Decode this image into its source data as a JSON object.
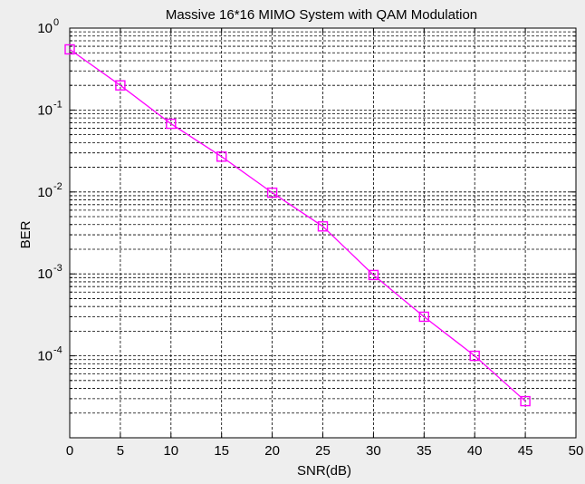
{
  "chart_data": {
    "type": "line",
    "title": "Massive 16*16 MIMO System with QAM Modulation",
    "xlabel": "SNR(dB)",
    "ylabel": "BER",
    "xlim": [
      0,
      50
    ],
    "ylim": [
      1e-05,
      1
    ],
    "yscale": "log",
    "grid": true,
    "x_ticks": [
      0,
      5,
      10,
      15,
      20,
      25,
      30,
      35,
      40,
      45,
      50
    ],
    "x_tick_labels": [
      "0",
      "5",
      "10",
      "15",
      "20",
      "25",
      "30",
      "35",
      "40",
      "45",
      "50"
    ],
    "y_ticks": [
      {
        "value": 1,
        "base": "10",
        "exp": "0"
      },
      {
        "value": 0.1,
        "base": "10",
        "exp": "-1"
      },
      {
        "value": 0.01,
        "base": "10",
        "exp": "-2"
      },
      {
        "value": 0.001,
        "base": "10",
        "exp": "-3"
      },
      {
        "value": 0.0001,
        "base": "10",
        "exp": "-4"
      }
    ],
    "series": [
      {
        "color": "#ff00ff",
        "marker": "square",
        "x": [
          0,
          5,
          10,
          15,
          20,
          25,
          30,
          35,
          40,
          45
        ],
        "y": [
          0.55,
          0.2,
          0.068,
          0.027,
          0.0098,
          0.0038,
          0.00097,
          0.0003,
          0.0001,
          2.8e-05
        ]
      }
    ]
  },
  "colors": {
    "background": "#eeeeee",
    "plot_background": "#ffffff",
    "axis": "#000000",
    "grid": "#000000",
    "series": "#ff00ff"
  }
}
